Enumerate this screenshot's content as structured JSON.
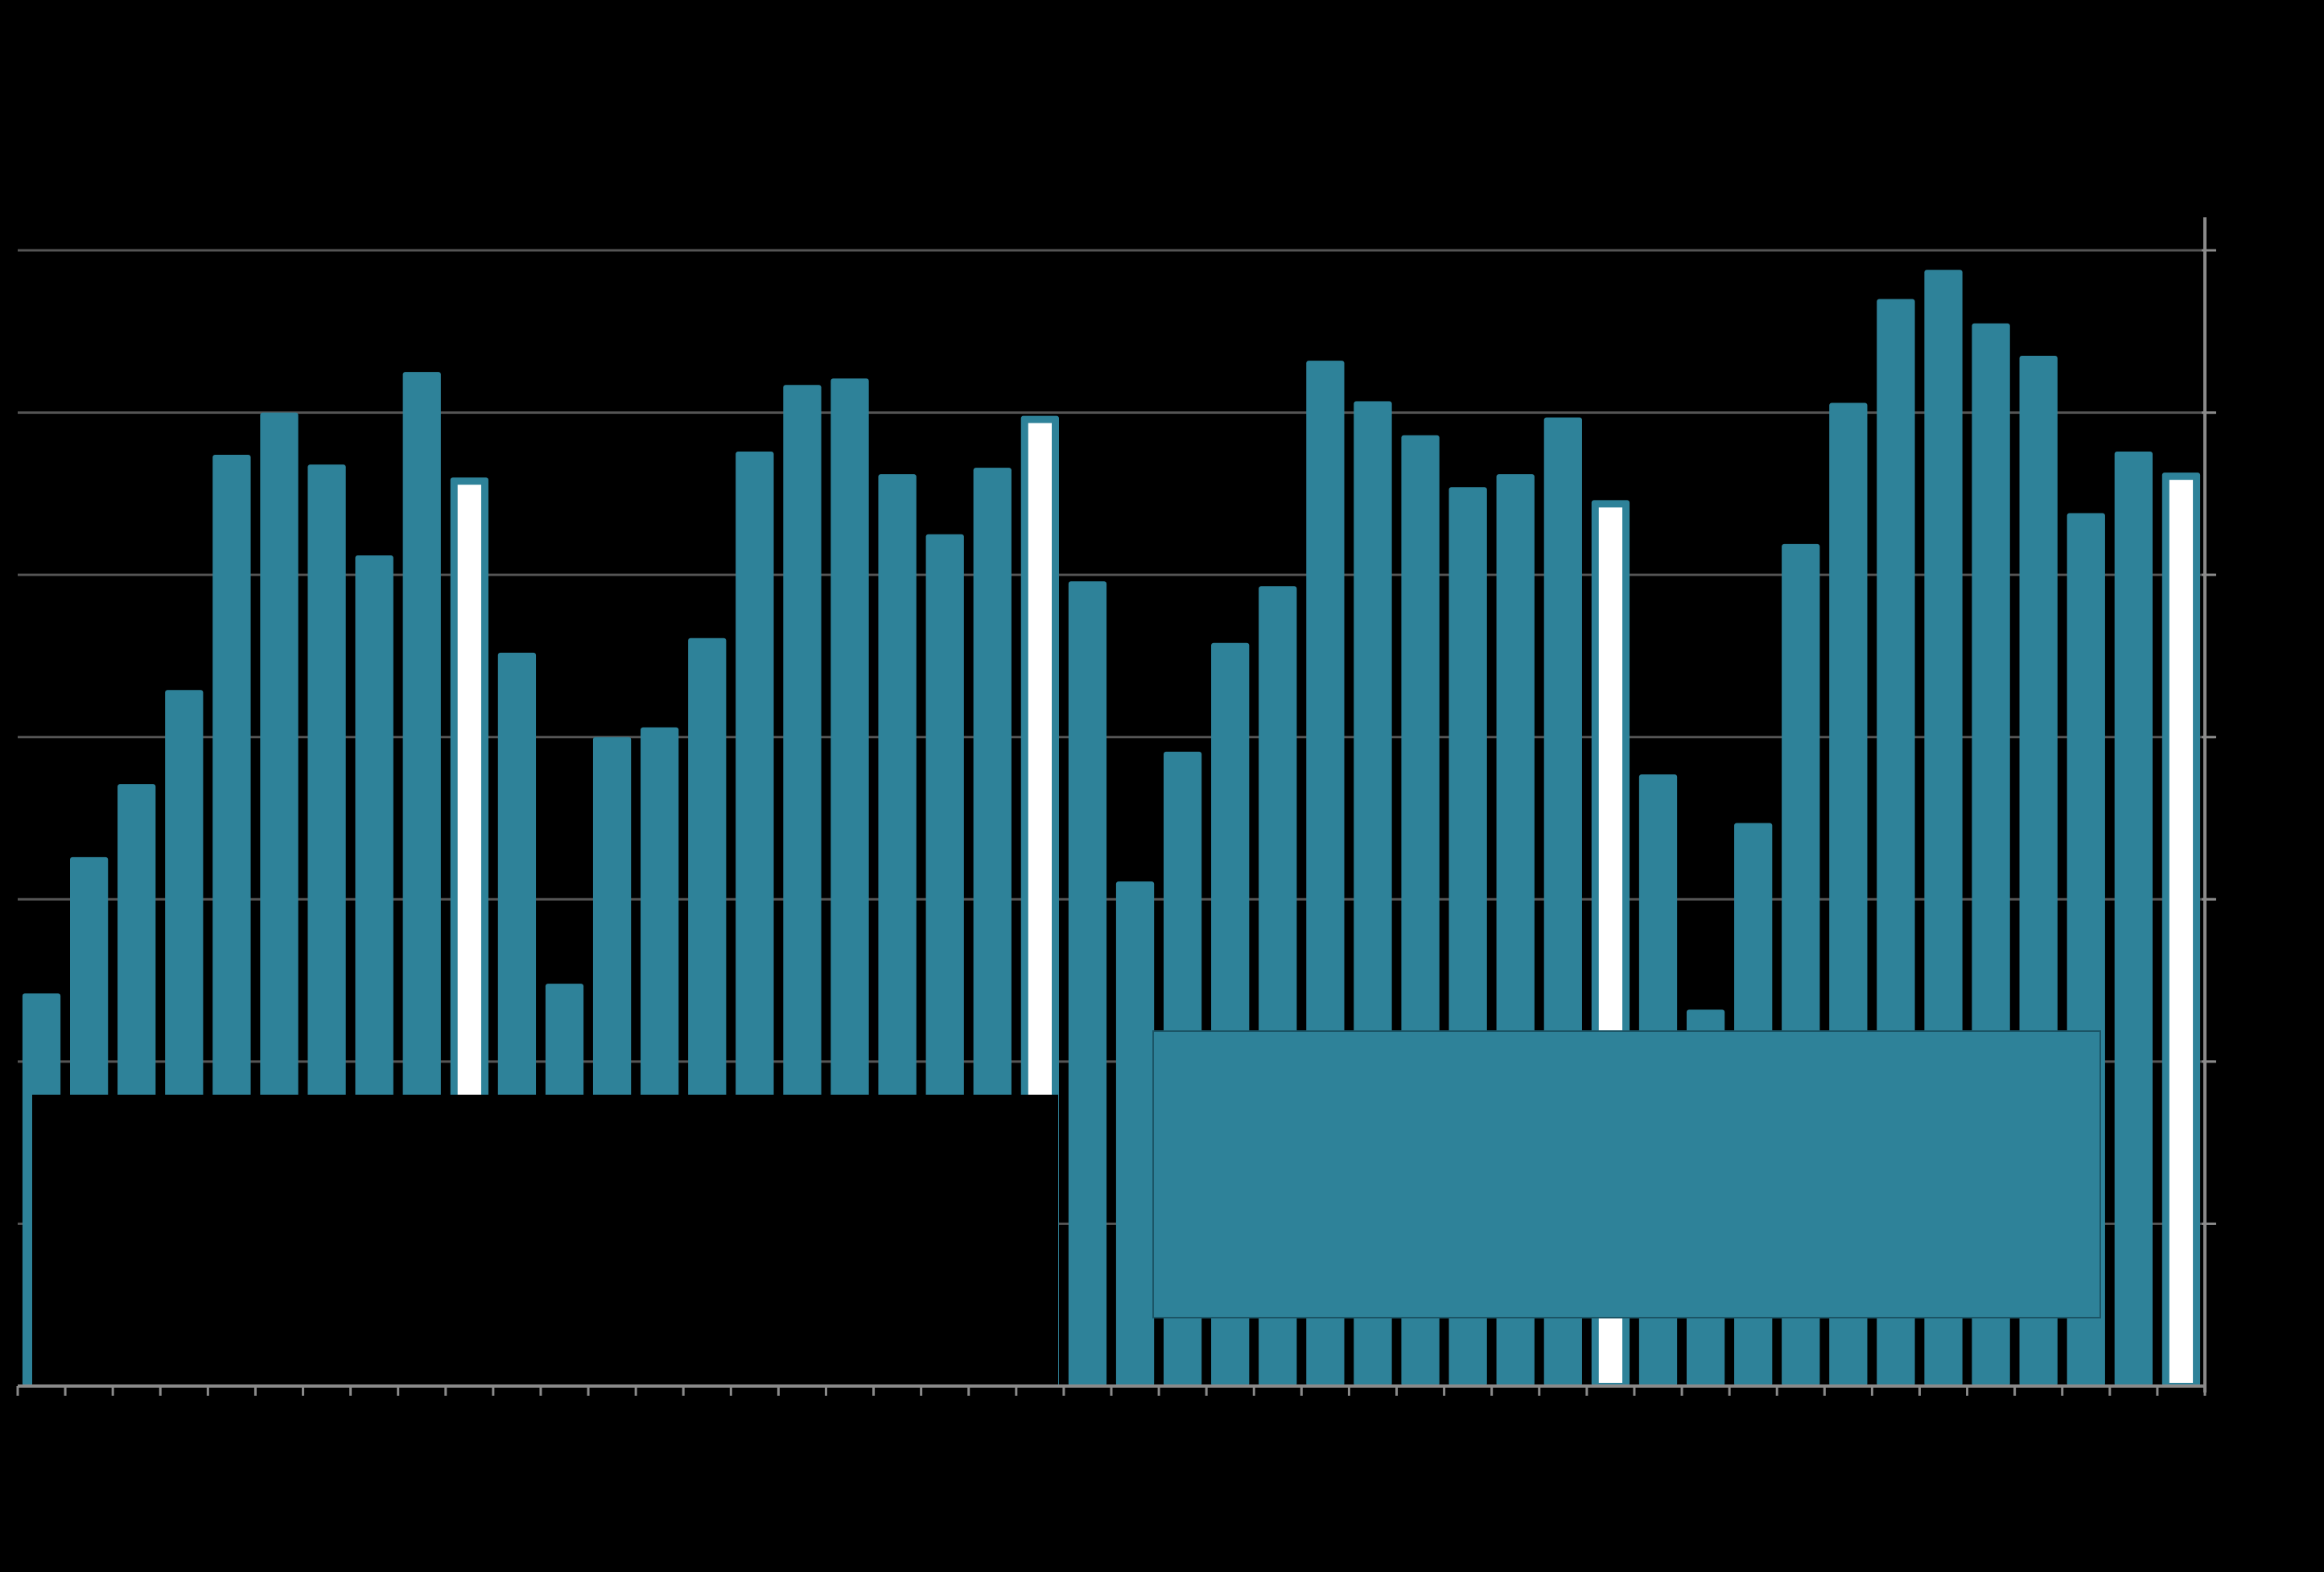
{
  "chart_data": {
    "type": "bar",
    "title": "",
    "xlabel": "",
    "ylabel": "",
    "ylim": [
      0,
      7
    ],
    "y_gridlines": [
      1,
      2,
      3,
      4,
      5,
      6,
      7
    ],
    "y_axis_side": "right",
    "grid": true,
    "legend": "none",
    "colors": {
      "background": "#000000",
      "bar": "#2e8299",
      "highlight_fill": "#ffffff",
      "gridline": "#555555",
      "axis": "#8a8a8a"
    },
    "series": [
      {
        "values": [
          2.42,
          3.26,
          3.71,
          4.29,
          5.74,
          6.0,
          5.68,
          5.12,
          6.25,
          5.6,
          4.52,
          2.48,
          4.0,
          4.06,
          4.61,
          5.76,
          6.17,
          6.21,
          5.62,
          5.25,
          5.66,
          5.98,
          4.96,
          3.11,
          3.91,
          4.58,
          4.93,
          6.32,
          6.07,
          5.86,
          5.54,
          5.62,
          5.97,
          5.46,
          3.77,
          2.32,
          3.47,
          5.19,
          6.06,
          6.7,
          6.88,
          6.55,
          6.35,
          5.38,
          5.76,
          5.63
        ],
        "highlighted_indices": [
          9,
          21,
          33,
          45
        ]
      }
    ],
    "overlay_panels": [
      {
        "position": "bottom-left",
        "fill": "#000000",
        "text": ""
      },
      {
        "position": "bottom-right",
        "fill": "#2e8299",
        "text": ""
      }
    ]
  }
}
